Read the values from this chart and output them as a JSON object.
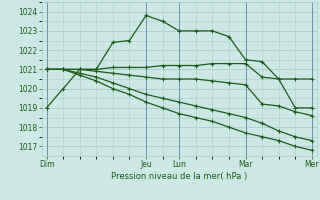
{
  "bg_color": "#cce8e4",
  "grid_color": "#aacccc",
  "line_color": "#1a5c1a",
  "xlabel": "Pression niveau de la mer( hPa )",
  "ylim": [
    1016.5,
    1024.5
  ],
  "yticks": [
    1017,
    1018,
    1019,
    1020,
    1021,
    1022,
    1023,
    1024
  ],
  "day_labels": [
    "Dim",
    "Jeu",
    "Lun",
    "Mar",
    "Mer"
  ],
  "day_positions": [
    0,
    6,
    8,
    12,
    16
  ],
  "series": [
    [
      1019.0,
      1020.0,
      1021.0,
      1021.0,
      1022.4,
      1022.5,
      1023.8,
      1023.5,
      1023.0,
      1023.0,
      1023.0,
      1022.7,
      1021.5,
      1021.4,
      1020.5,
      1019.0,
      1019.0
    ],
    [
      1021.0,
      1021.0,
      1021.0,
      1021.0,
      1021.1,
      1021.1,
      1021.1,
      1021.2,
      1021.2,
      1021.2,
      1021.3,
      1021.3,
      1021.3,
      1020.6,
      1020.5,
      1020.5,
      1020.5
    ],
    [
      1021.0,
      1021.0,
      1021.0,
      1020.9,
      1020.8,
      1020.7,
      1020.6,
      1020.5,
      1020.5,
      1020.5,
      1020.4,
      1020.3,
      1020.2,
      1019.2,
      1019.1,
      1018.8,
      1018.6
    ],
    [
      1021.0,
      1021.0,
      1020.8,
      1020.6,
      1020.3,
      1020.0,
      1019.7,
      1019.5,
      1019.3,
      1019.1,
      1018.9,
      1018.7,
      1018.5,
      1018.2,
      1017.8,
      1017.5,
      1017.3
    ],
    [
      1021.0,
      1021.0,
      1020.7,
      1020.4,
      1020.0,
      1019.7,
      1019.3,
      1019.0,
      1018.7,
      1018.5,
      1018.3,
      1018.0,
      1017.7,
      1017.5,
      1017.3,
      1017.0,
      1016.8
    ]
  ],
  "marker": "+",
  "marker_size": 3,
  "linewidth": 0.9,
  "tick_fontsize": 5.5,
  "xlabel_fontsize": 6.0
}
